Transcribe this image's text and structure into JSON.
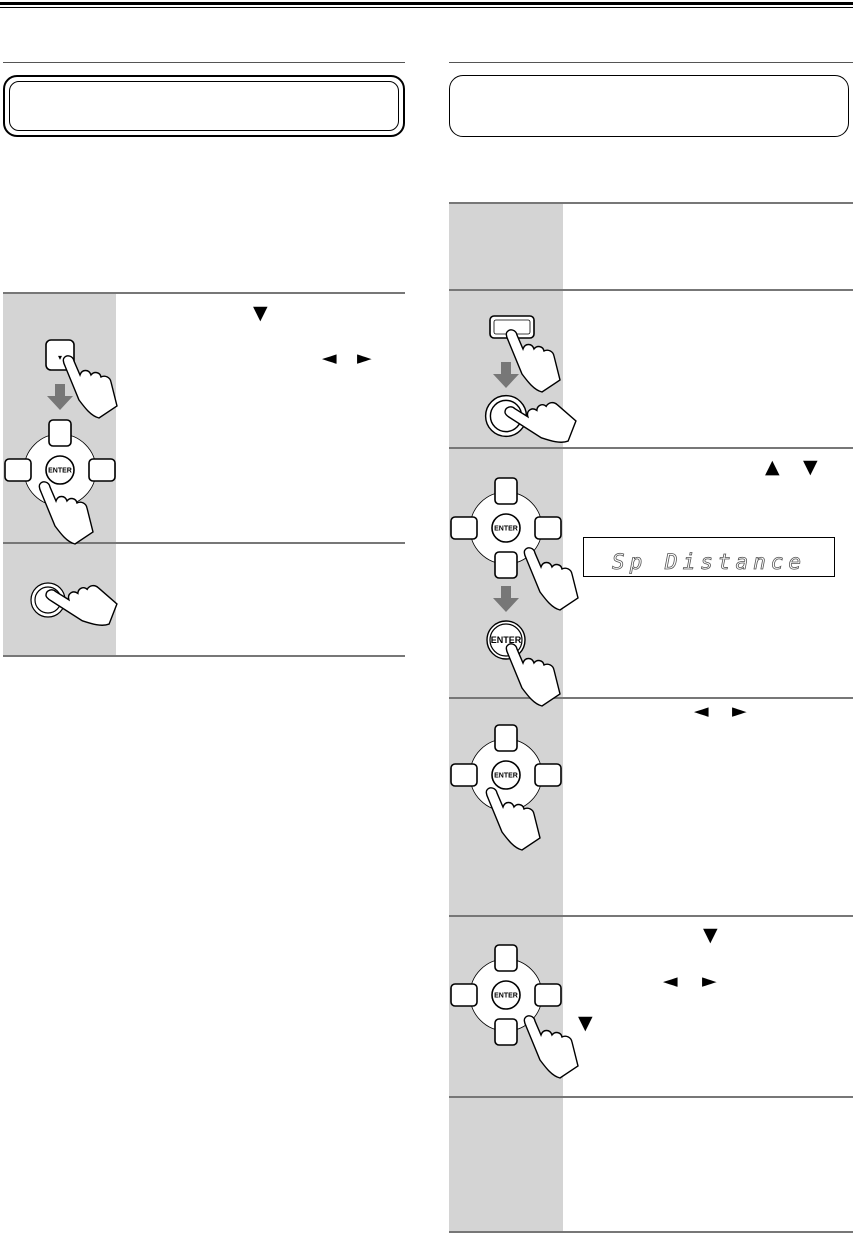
{
  "glyphs": {
    "down": "▼",
    "up": "▲",
    "left": "◄",
    "right": "►"
  },
  "buttons": {
    "enter": "ENTER"
  },
  "display": {
    "text": "Sp Distance"
  },
  "colors": {
    "rule": "#777777",
    "step_column": "#d4d4d4",
    "arrow": "#777777"
  }
}
